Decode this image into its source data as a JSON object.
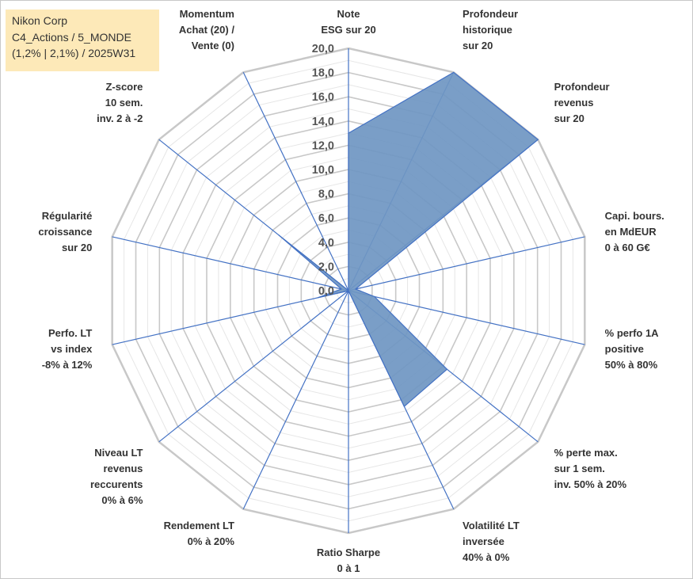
{
  "title_box": {
    "lines": [
      "Nikon Corp",
      "C4_Actions / 5_MONDE",
      "(1,2% | 2,1%) / 2025W31"
    ]
  },
  "chart_data": {
    "type": "radar",
    "rmax": 20,
    "rmin": 0,
    "tick_step": 2,
    "tick_labels": [
      "0,0",
      "2,0",
      "4,0",
      "6,0",
      "8,0",
      "10,0",
      "12,0",
      "14,0",
      "16,0",
      "18,0",
      "20,0"
    ],
    "grid": true,
    "colors": {
      "fill": "#6f96c2",
      "line": "#4472c4",
      "grid": "#c8c8c8",
      "axis": "#4472c4"
    },
    "axes": [
      {
        "label": [
          "Note",
          "ESG sur 20"
        ],
        "value": 13
      },
      {
        "label": [
          "Profondeur",
          "historique",
          "sur 20"
        ],
        "value": 20
      },
      {
        "label": [
          "Profondeur",
          "revenus",
          "sur 20"
        ],
        "value": 20
      },
      {
        "label": [
          "Capi. bours.",
          "en MdEUR",
          "0 à 60 G€"
        ],
        "value": 0.6
      },
      {
        "label": [
          "% perfo 1A",
          "positive",
          "50% à 80%"
        ],
        "value": 2.2
      },
      {
        "label": [
          "% perte max.",
          "sur 1 sem.",
          "inv. 50% à 20%"
        ],
        "value": 10.4
      },
      {
        "label": [
          "Volatilité LT",
          "inversée",
          "40% à 0%"
        ],
        "value": 10.6
      },
      {
        "label": [
          "Ratio Sharpe",
          "0 à 1"
        ],
        "value": 0
      },
      {
        "label": [
          "Rendement LT",
          "0% à 20%"
        ],
        "value": 0
      },
      {
        "label": [
          "Niveau LT",
          "revenus",
          "reccurents",
          "0% à 6%"
        ],
        "value": 0
      },
      {
        "label": [
          "Perfo. LT",
          "vs index",
          "-8% à 12%"
        ],
        "value": 2.6
      },
      {
        "label": [
          "Régularité",
          "croissance",
          "sur 20"
        ],
        "value": 0.6
      },
      {
        "label": [
          "Z-score",
          "10 sem.",
          "inv. 2 à -2"
        ],
        "value": 7.4
      },
      {
        "label": [
          "Momentum",
          "Achat (20) /",
          "Vente (0)"
        ],
        "value": 0
      }
    ]
  }
}
